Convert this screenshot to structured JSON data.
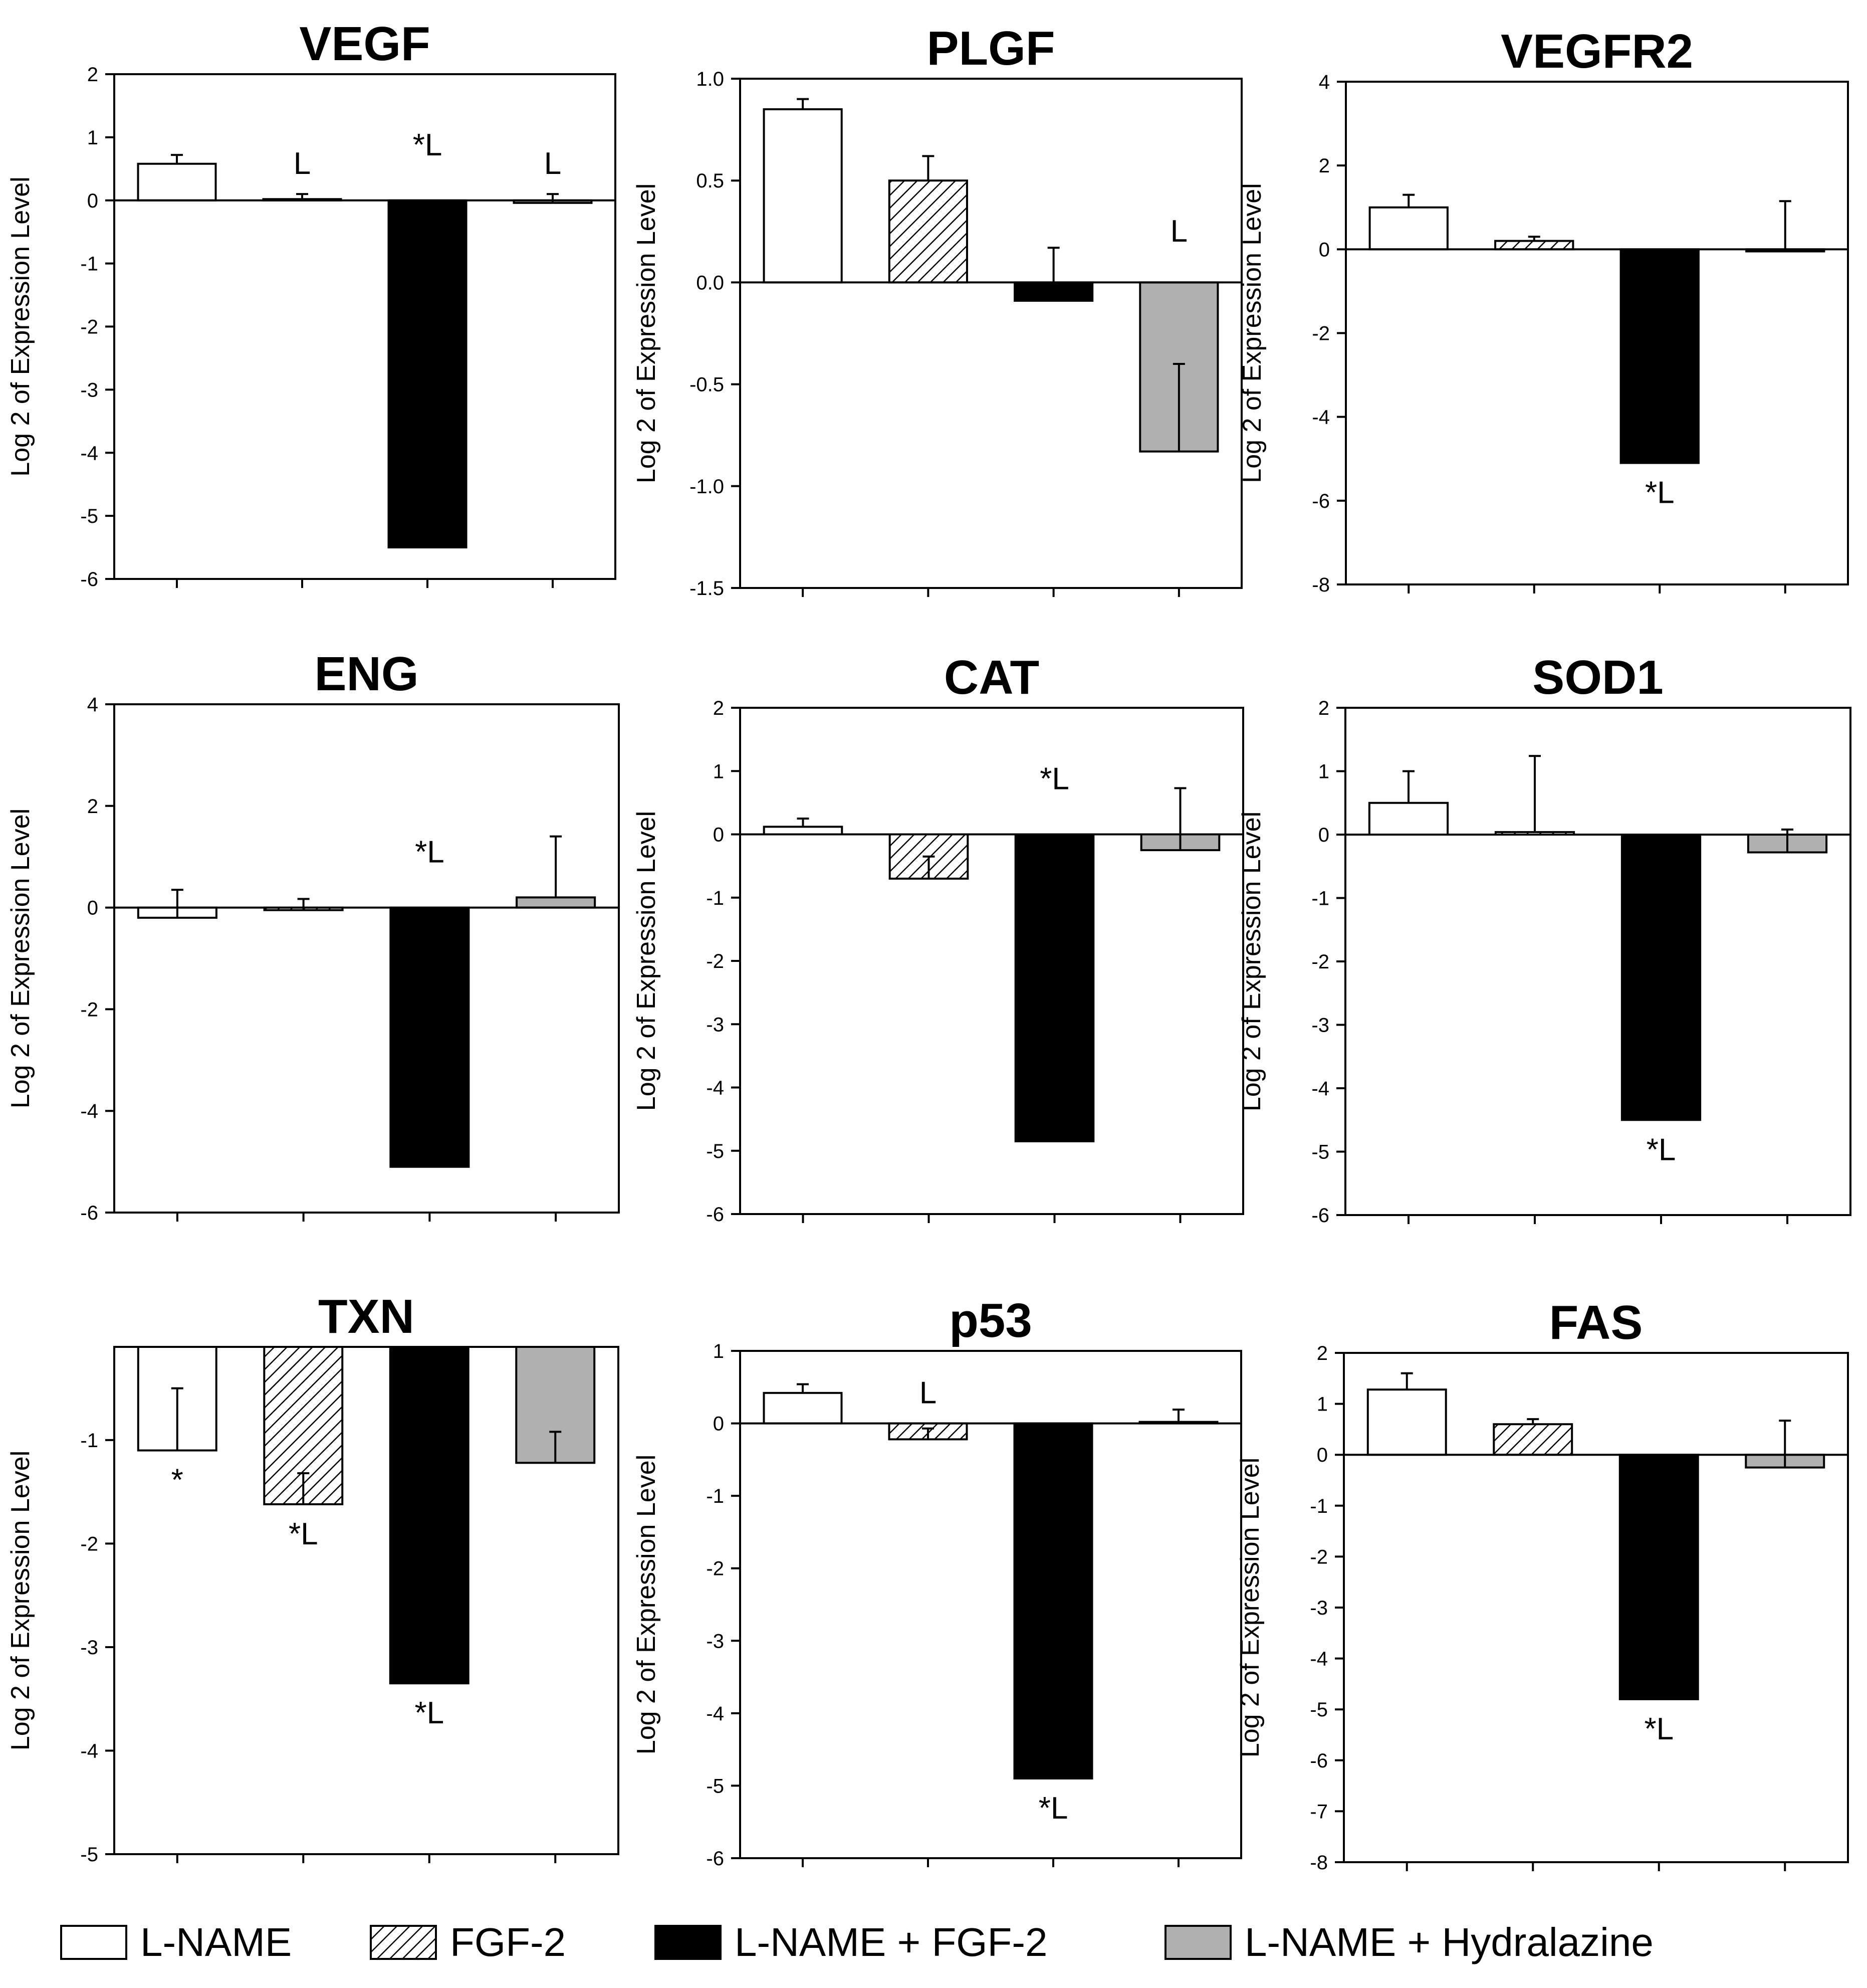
{
  "colors": {
    "l_name": "#ffffff",
    "fgf2": "#ffffff",
    "l_name_fgf2": "#000000",
    "l_name_hydralazine": "#b0b0b0",
    "axis": "#000000"
  },
  "legend": {
    "items": [
      {
        "label": "L-NAME",
        "style": "white"
      },
      {
        "label": "FGF-2",
        "style": "hatch"
      },
      {
        "label": "L-NAME + FGF-2",
        "style": "black"
      },
      {
        "label": "L-NAME + Hydralazine",
        "style": "gray"
      }
    ]
  },
  "chart_data": [
    {
      "type": "bar",
      "title": "VEGF",
      "ylabel": "Log 2 of Expression Level",
      "ylim": [
        -6,
        2
      ],
      "yticks": [
        2,
        1,
        0,
        -1,
        -2,
        -3,
        -4,
        -5,
        -6
      ],
      "series": [
        {
          "name": "L-NAME",
          "value": 0.58,
          "err": 0.14,
          "annotation": ""
        },
        {
          "name": "FGF-2",
          "value": 0.02,
          "err": 0.08,
          "annotation": "L"
        },
        {
          "name": "L-NAME + FGF-2",
          "value": -5.5,
          "err": 0,
          "annotation": "*L"
        },
        {
          "name": "L-NAME + Hydralazine",
          "value": -0.04,
          "err": 0.14,
          "annotation": "L"
        }
      ]
    },
    {
      "type": "bar",
      "title": "PLGF",
      "ylabel": "Log 2 of Expression Level",
      "ylim": [
        -1.5,
        1.0
      ],
      "yticks": [
        "1.0",
        "0.5",
        "0.0",
        "-0.5",
        "-1.0",
        "-1.5"
      ],
      "series": [
        {
          "name": "L-NAME",
          "value": 0.85,
          "err": 0.05,
          "annotation": ""
        },
        {
          "name": "FGF-2",
          "value": 0.5,
          "err": 0.12,
          "annotation": ""
        },
        {
          "name": "L-NAME + FGF-2",
          "value": -0.09,
          "err": 0.26,
          "annotation": ""
        },
        {
          "name": "L-NAME + Hydralazine",
          "value": -0.83,
          "err": 0.43,
          "annotation": "L"
        }
      ]
    },
    {
      "type": "bar",
      "title": "VEGFR2",
      "ylabel": "Log 2 of Expression Level",
      "ylim": [
        -8,
        4
      ],
      "yticks": [
        4,
        2,
        0,
        -2,
        -4,
        -6,
        -8
      ],
      "series": [
        {
          "name": "L-NAME",
          "value": 1.0,
          "err": 0.3,
          "annotation": ""
        },
        {
          "name": "FGF-2",
          "value": 0.2,
          "err": 0.1,
          "annotation": ""
        },
        {
          "name": "L-NAME + FGF-2",
          "value": -5.1,
          "err": 0,
          "annotation": "*L"
        },
        {
          "name": "L-NAME + Hydralazine",
          "value": -0.05,
          "err": 1.2,
          "annotation": ""
        }
      ]
    },
    {
      "type": "bar",
      "title": "ENG",
      "ylabel": "Log 2 of Expression Level",
      "ylim": [
        -6,
        4
      ],
      "yticks": [
        4,
        2,
        0,
        -2,
        -4,
        -6
      ],
      "series": [
        {
          "name": "L-NAME",
          "value": -0.2,
          "err": 0.55,
          "annotation": ""
        },
        {
          "name": "FGF-2",
          "value": -0.05,
          "err": 0.22,
          "annotation": ""
        },
        {
          "name": "L-NAME + FGF-2",
          "value": -5.1,
          "err": 0,
          "annotation": "*L"
        },
        {
          "name": "L-NAME + Hydralazine",
          "value": 0.2,
          "err": 1.2,
          "annotation": ""
        }
      ]
    },
    {
      "type": "bar",
      "title": "CAT",
      "ylabel": "Log 2 of Expression Level",
      "ylim": [
        -6,
        2
      ],
      "yticks": [
        2,
        1,
        0,
        -1,
        -2,
        -3,
        -4,
        -5,
        -6
      ],
      "series": [
        {
          "name": "L-NAME",
          "value": 0.12,
          "err": 0.13,
          "annotation": ""
        },
        {
          "name": "FGF-2",
          "value": -0.7,
          "err": 0.35,
          "annotation": ""
        },
        {
          "name": "L-NAME + FGF-2",
          "value": -4.85,
          "err": 0,
          "annotation": "*L"
        },
        {
          "name": "L-NAME + Hydralazine",
          "value": -0.25,
          "err": 0.98,
          "annotation": ""
        }
      ]
    },
    {
      "type": "bar",
      "title": "SOD1",
      "ylabel": "Log 2 of Expression Level",
      "ylim": [
        -6,
        2
      ],
      "yticks": [
        2,
        1,
        0,
        -1,
        -2,
        -3,
        -4,
        -5,
        -6
      ],
      "series": [
        {
          "name": "L-NAME",
          "value": 0.5,
          "err": 0.5,
          "annotation": ""
        },
        {
          "name": "FGF-2",
          "value": 0.04,
          "err": 1.2,
          "annotation": ""
        },
        {
          "name": "L-NAME + FGF-2",
          "value": -4.5,
          "err": 0,
          "annotation": "*L"
        },
        {
          "name": "L-NAME + Hydralazine",
          "value": -0.28,
          "err": 0.36,
          "annotation": ""
        }
      ]
    },
    {
      "type": "bar",
      "title": "TXN",
      "ylabel": "Log 2 of Expression Level",
      "ylim": [
        -5,
        -0.1
      ],
      "baseline": -0.1,
      "yticks": [
        -1,
        -2,
        -3,
        -4,
        -5
      ],
      "series": [
        {
          "name": "L-NAME",
          "value": -1.1,
          "err": 0.6,
          "annotation": "*"
        },
        {
          "name": "FGF-2",
          "value": -1.62,
          "err": 0.3,
          "annotation": "*L"
        },
        {
          "name": "L-NAME + FGF-2",
          "value": -3.35,
          "err": 0,
          "annotation": "*L"
        },
        {
          "name": "L-NAME + Hydralazine",
          "value": -1.22,
          "err": 0.3,
          "annotation": ""
        }
      ]
    },
    {
      "type": "bar",
      "title": "p53",
      "ylabel": "Log 2 of Expression Level",
      "ylim": [
        -6,
        1
      ],
      "yticks": [
        1,
        0,
        -1,
        -2,
        -3,
        -4,
        -5,
        -6
      ],
      "series": [
        {
          "name": "L-NAME",
          "value": 0.42,
          "err": 0.12,
          "annotation": ""
        },
        {
          "name": "FGF-2",
          "value": -0.22,
          "err": 0.15,
          "annotation": "L"
        },
        {
          "name": "L-NAME + FGF-2",
          "value": -4.9,
          "err": 0,
          "annotation": "*L"
        },
        {
          "name": "L-NAME + Hydralazine",
          "value": 0.02,
          "err": 0.17,
          "annotation": ""
        }
      ]
    },
    {
      "type": "bar",
      "title": "FAS",
      "ylabel": "Log 2 of Expression Level",
      "ylim": [
        -8,
        2
      ],
      "yticks": [
        2,
        1,
        0,
        -1,
        -2,
        -3,
        -4,
        -5,
        -6,
        -7,
        -8
      ],
      "series": [
        {
          "name": "L-NAME",
          "value": 1.28,
          "err": 0.32,
          "annotation": ""
        },
        {
          "name": "FGF-2",
          "value": 0.6,
          "err": 0.1,
          "annotation": ""
        },
        {
          "name": "L-NAME + FGF-2",
          "value": -4.8,
          "err": 0,
          "annotation": "*L"
        },
        {
          "name": "L-NAME + Hydralazine",
          "value": -0.25,
          "err": 0.92,
          "annotation": ""
        }
      ]
    }
  ]
}
